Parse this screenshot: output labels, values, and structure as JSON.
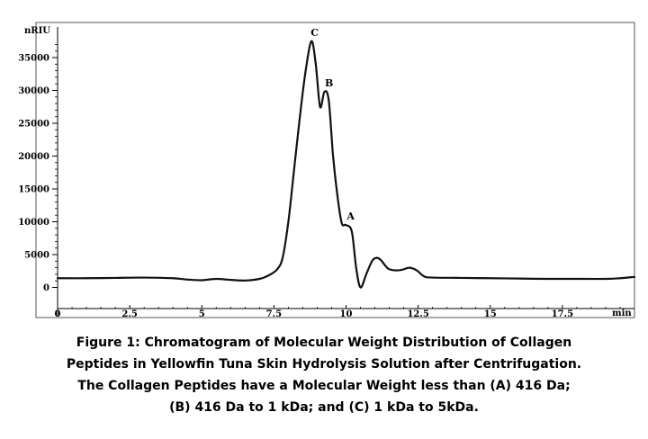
{
  "chart_data": {
    "type": "line",
    "title": "",
    "xlabel": "min",
    "ylabel": "nRIU",
    "xlim": [
      0,
      20
    ],
    "ylim": [
      -1500,
      40000
    ],
    "x_ticks": [
      0,
      2.5,
      5,
      7.5,
      10,
      12.5,
      15,
      17.5
    ],
    "x_tick_labels": [
      "0",
      "2.5",
      "5",
      "7.5",
      "10",
      "12.5",
      "15",
      "17.5"
    ],
    "y_ticks": [
      0,
      5000,
      10000,
      15000,
      20000,
      25000,
      30000,
      35000
    ],
    "y_tick_labels": [
      "0",
      "5000",
      "10000",
      "15000",
      "20000",
      "25000",
      "30000",
      "35000"
    ],
    "grid": false,
    "legend": "none",
    "line_color": "#111111",
    "series": [
      {
        "x": [
          0,
          1,
          2,
          3,
          4,
          4.5,
          5,
          5.5,
          6,
          6.5,
          7,
          7.3,
          7.6,
          7.8,
          8.0,
          8.2,
          8.4,
          8.6,
          8.8,
          8.95,
          9.1,
          9.25,
          9.4,
          9.55,
          9.7,
          9.85,
          10.0,
          10.2,
          10.35,
          10.5,
          10.7,
          10.9,
          11.05,
          11.2,
          11.45,
          11.7,
          11.95,
          12.2,
          12.45,
          12.7,
          13,
          14,
          15,
          16,
          17,
          18,
          19,
          19.5,
          20
        ],
        "y": [
          1400,
          1400,
          1450,
          1500,
          1400,
          1200,
          1100,
          1300,
          1150,
          1050,
          1300,
          1800,
          2700,
          4500,
          10000,
          18000,
          26000,
          33000,
          37500,
          34000,
          27500,
          29800,
          28500,
          20000,
          14000,
          9800,
          9500,
          8500,
          3000,
          0,
          2000,
          4000,
          4500,
          4200,
          2900,
          2600,
          2700,
          3000,
          2600,
          1700,
          1500,
          1450,
          1400,
          1350,
          1300,
          1300,
          1300,
          1400,
          1600
        ]
      }
    ],
    "annotations": [
      {
        "text": "C",
        "x": 8.85,
        "y": 37500
      },
      {
        "text": "B",
        "x": 9.35,
        "y": 29800
      },
      {
        "text": "A",
        "x": 10.1,
        "y": 9500
      }
    ]
  },
  "caption": {
    "lines": [
      "Figure 1: Chromatogram of Molecular Weight Distribution of Collagen",
      "Peptides in Yellowfin Tuna Skin Hydrolysis Solution after Centrifugation.",
      "The Collagen Peptides have a Molecular Weight less than (A) 416 Da;",
      "(B) 416 Da to 1 kDa; and (C) 1 kDa to 5kDa."
    ]
  }
}
